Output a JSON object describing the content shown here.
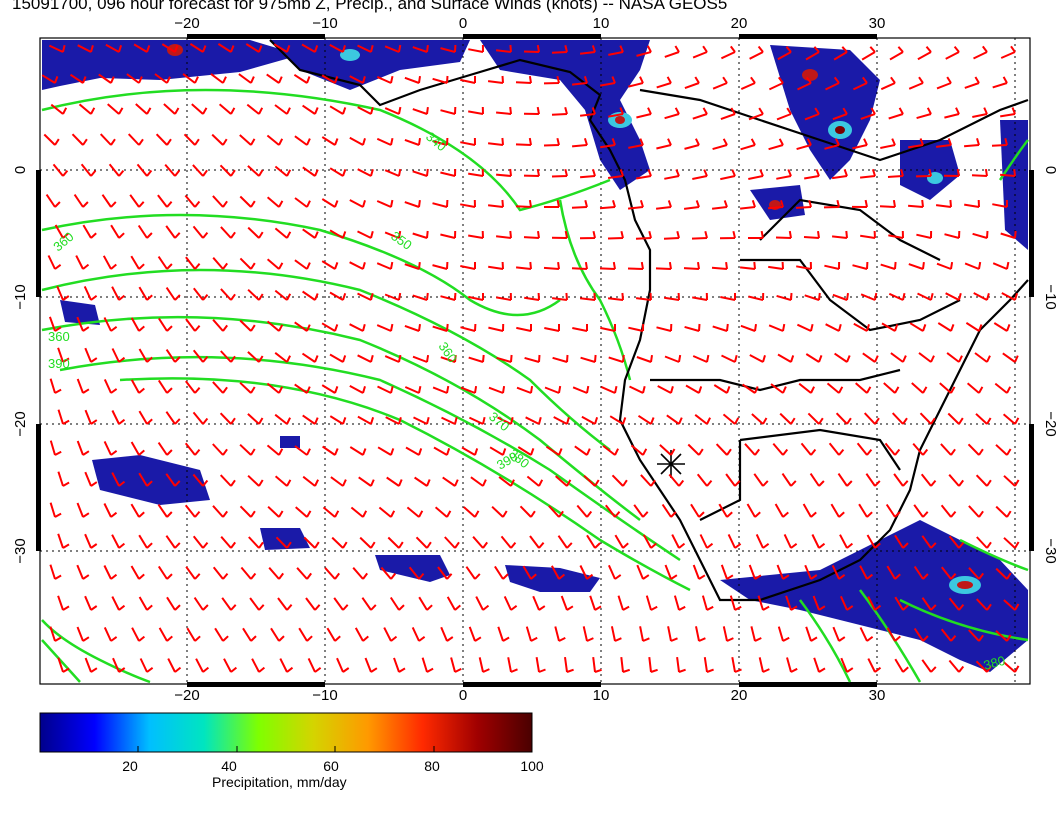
{
  "title": "15091700, 096 hour forecast for 975mb Z, Precip., and Surface Winds (knots) -- NASA GEOS5",
  "lon_labels": [
    "−20",
    "−10",
    "0",
    "10",
    "20",
    "30"
  ],
  "lat_labels": [
    "0",
    "−10",
    "−20",
    "−30"
  ],
  "contour_labels": [
    "340",
    "350",
    "360",
    "370",
    "380",
    "390"
  ],
  "colorbar": {
    "label": "Precipitation, mm/day",
    "ticks": [
      "20",
      "40",
      "60",
      "80",
      "100"
    ],
    "colors": [
      "#00008b",
      "#0000ff",
      "#00bfff",
      "#00e5c0",
      "#7fff00",
      "#d4d400",
      "#ff9900",
      "#ff2a00",
      "#a00000",
      "#4a0000"
    ]
  },
  "map_colors": {
    "precip_low": "#1a1aa8",
    "precip_mid": "#3cc8e0",
    "precip_high": "#c01818",
    "wind_barb": "#ff0000",
    "contour": "#22dd22",
    "coastline": "#000000"
  },
  "icons": {
    "marker": "asterisk-marker-icon"
  }
}
